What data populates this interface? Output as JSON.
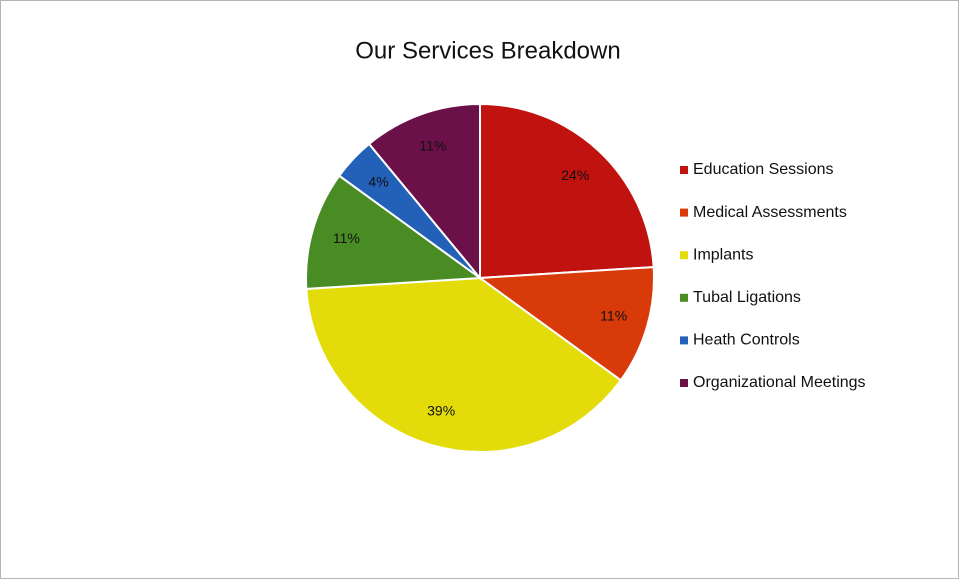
{
  "chart_data": {
    "type": "pie",
    "title": "Our Services Breakdown",
    "categories": [
      "Education Sessions",
      "Medical Assessments",
      "Implants",
      "Tubal Ligations",
      "Heath Controls",
      "Organizational Meetings"
    ],
    "values": [
      24,
      11,
      39,
      11,
      4,
      11
    ],
    "value_labels": [
      "24%",
      "11%",
      "39%",
      "11%",
      "4%",
      "11%"
    ],
    "colors": [
      "#c0120f",
      "#d93a0a",
      "#e3dc0a",
      "#4a8c24",
      "#2361b8",
      "#6b1048"
    ],
    "legend": "right"
  }
}
